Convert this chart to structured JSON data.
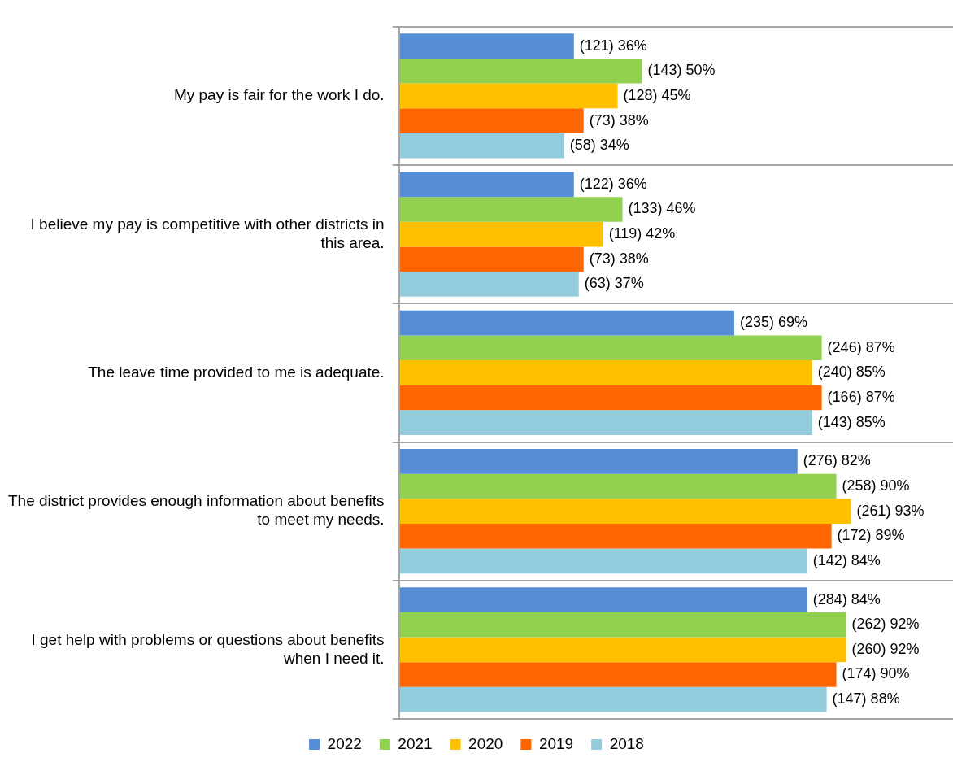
{
  "chart_data": {
    "type": "bar",
    "orientation": "horizontal",
    "categories": [
      "My pay is fair for the work I do.",
      "I believe my pay is competitive with other districts in this area.",
      "The leave time provided to me is adequate.",
      "The district provides enough information about benefits to meet my needs.",
      "I get help with problems or questions about benefits when I need it."
    ],
    "series": [
      {
        "name": "2022",
        "color": "#558ed5",
        "values": [
          36,
          36,
          69,
          82,
          84
        ],
        "value_labels": [
          "(121) 36%",
          "(122) 36%",
          "(235) 69%",
          "(276) 82%",
          "(284) 84%"
        ]
      },
      {
        "name": "2021",
        "color": "#92d050",
        "values": [
          50,
          46,
          87,
          90,
          92
        ],
        "value_labels": [
          "(143) 50%",
          "(133) 46%",
          "(246) 87%",
          "(258) 90%",
          "(262) 92%"
        ]
      },
      {
        "name": "2020",
        "color": "#ffc000",
        "values": [
          45,
          42,
          85,
          93,
          92
        ],
        "value_labels": [
          "(128) 45%",
          "(119) 42%",
          "(240) 85%",
          "(261) 93%",
          "(260) 92%"
        ]
      },
      {
        "name": "2019",
        "color": "#ff6600",
        "values": [
          38,
          38,
          87,
          89,
          90
        ],
        "value_labels": [
          "(73) 38%",
          "(73) 38%",
          "(166) 87%",
          "(172) 89%",
          "(174) 90%"
        ]
      },
      {
        "name": "2018",
        "color": "#93cddd",
        "values": [
          34,
          37,
          85,
          84,
          88
        ],
        "value_labels": [
          "(58) 34%",
          "(63) 37%",
          "(143) 85%",
          "(142) 84%",
          "(147) 88%"
        ]
      }
    ],
    "xlim": [
      0,
      114
    ],
    "tick_labels": "y",
    "grid": "y",
    "legend": "bottom"
  }
}
